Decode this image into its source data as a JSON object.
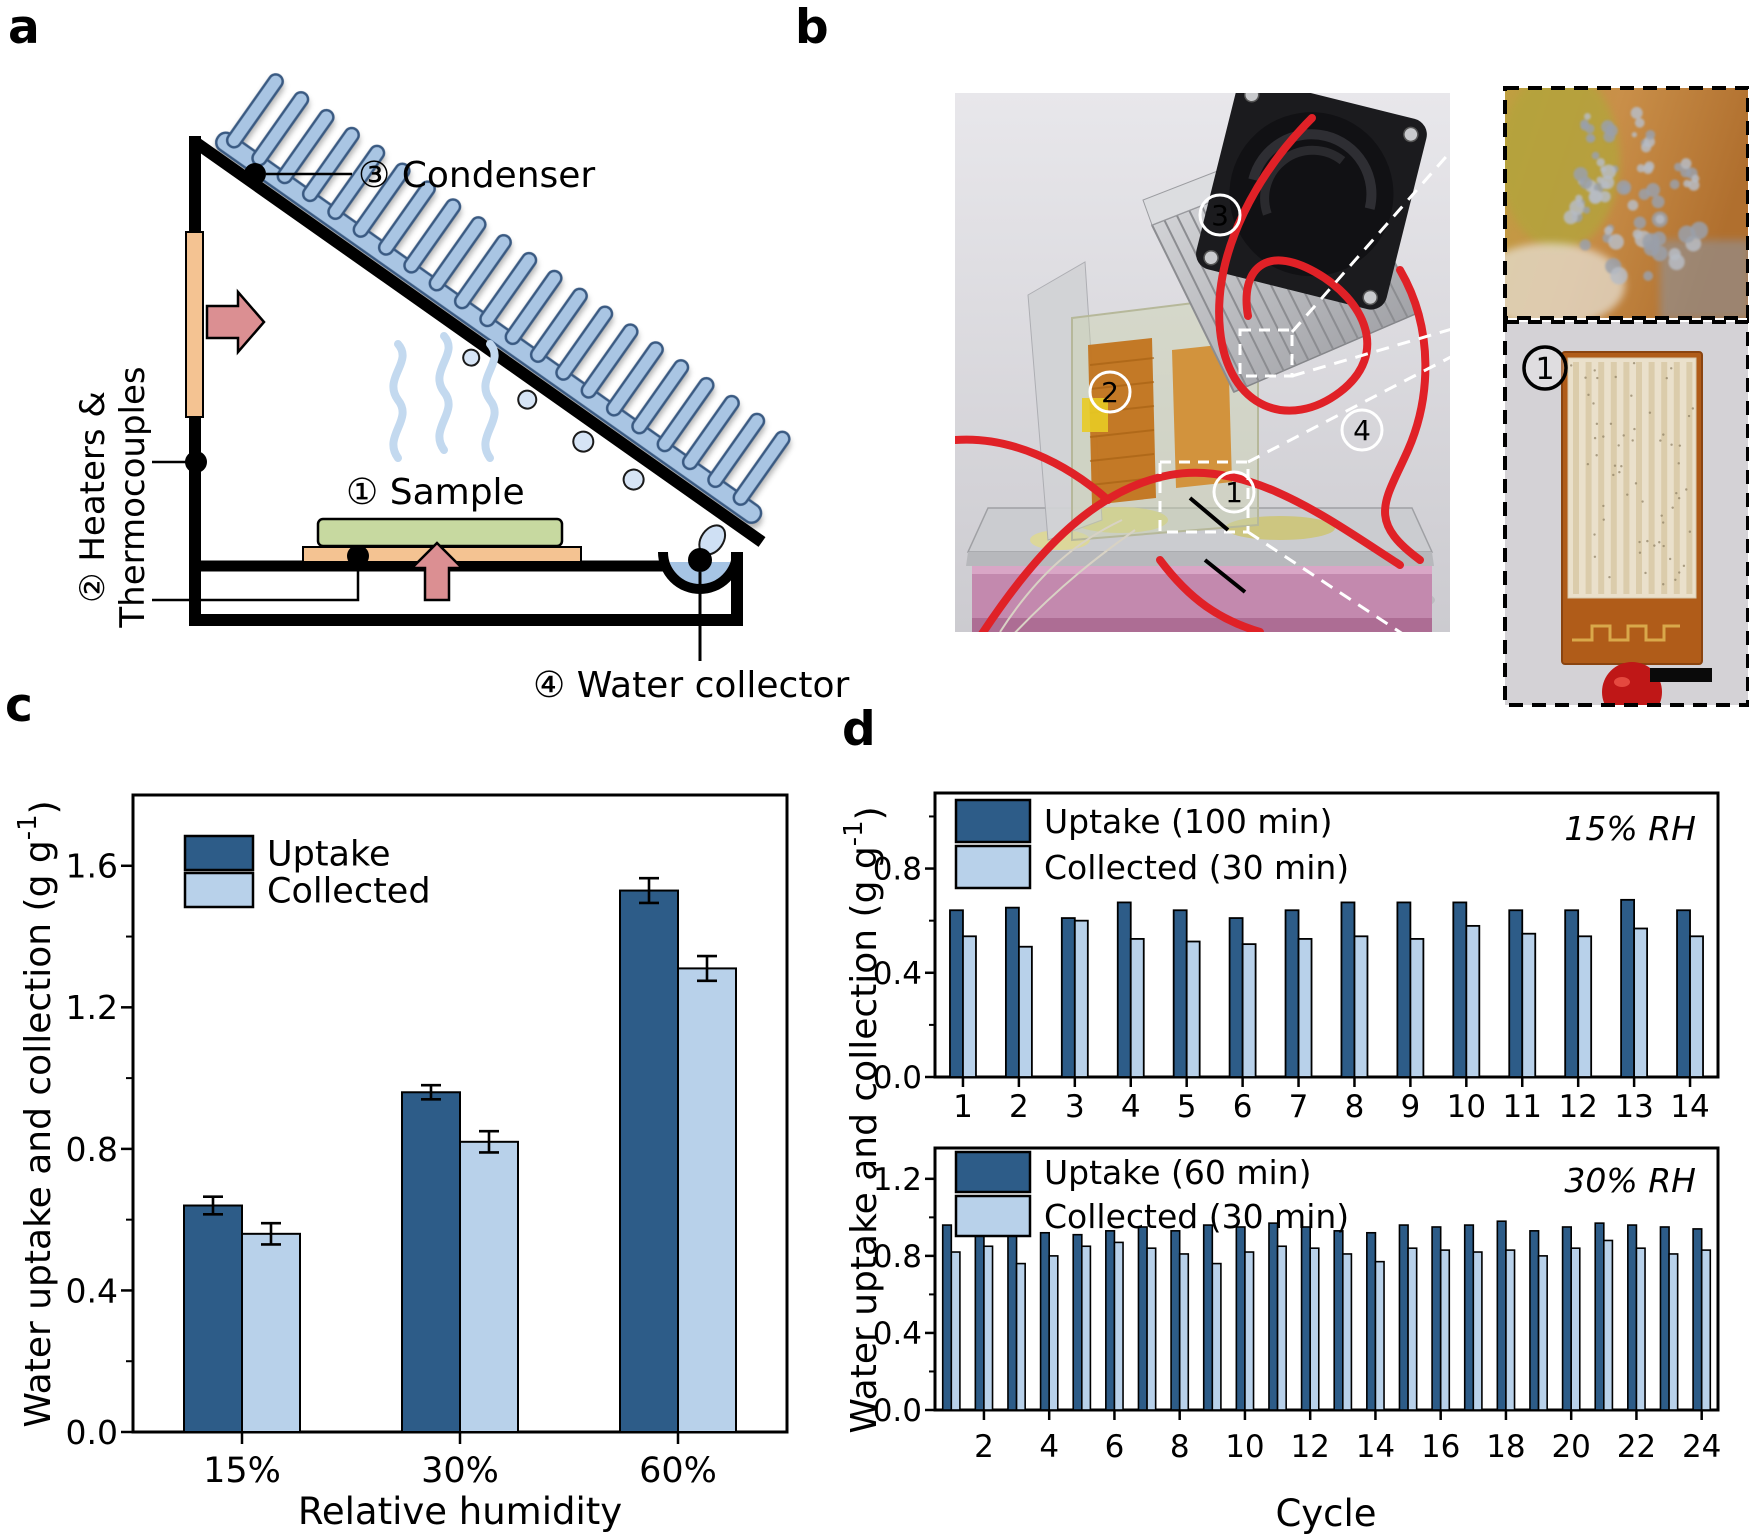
{
  "panels": {
    "a": "a",
    "b": "b",
    "c": "c",
    "d": "d"
  },
  "panel_a": {
    "condenser_label": "③ Condenser",
    "sample_label": "① Sample",
    "heaters_label_line1": "② Heaters &",
    "heaters_label_line2": "Thermocouples",
    "water_collector_label": "④ Water collector"
  },
  "panel_b": {
    "marker_condenser": "3",
    "marker_heater": "2",
    "marker_collector": "4",
    "marker_sample": "1",
    "inset_sample_marker": "1"
  },
  "colors": {
    "uptake_bar": "#2d5c88",
    "collected_bar": "#b8d1ea",
    "condenser_fill": "#a9c5e3",
    "heater_fill": "#f4c392",
    "sample_fill": "#c7d9a0",
    "arrow_fill": "#db8f92",
    "wire_red": "#e02127",
    "foam_pink": "#c389ae"
  },
  "chart_data": [
    {
      "id": "c",
      "type": "bar",
      "title": "",
      "categories": [
        "15%",
        "30%",
        "60%"
      ],
      "series": [
        {
          "name": "Uptake",
          "color": "#2d5c88",
          "values": [
            0.64,
            0.96,
            1.53
          ],
          "errors": [
            0.025,
            0.02,
            0.035
          ]
        },
        {
          "name": "Collected",
          "color": "#b8d1ea",
          "values": [
            0.56,
            0.82,
            1.31
          ],
          "errors": [
            0.03,
            0.03,
            0.035
          ]
        }
      ],
      "xlabel": "Relative humidity",
      "ylabel": "Water uptake and collection (g g⁻¹)",
      "ylim": [
        0,
        1.8
      ],
      "yticks": [
        0.0,
        0.4,
        0.8,
        1.2,
        1.6
      ],
      "grid": false,
      "legend_position": "top-left"
    },
    {
      "id": "d_top",
      "type": "bar",
      "annotation": "15% RH",
      "categories": [
        "1",
        "2",
        "3",
        "4",
        "5",
        "6",
        "7",
        "8",
        "9",
        "10",
        "11",
        "12",
        "13",
        "14"
      ],
      "series": [
        {
          "name": "Uptake (100 min)",
          "color": "#2d5c88",
          "values": [
            0.64,
            0.65,
            0.61,
            0.67,
            0.64,
            0.61,
            0.64,
            0.67,
            0.67,
            0.67,
            0.64,
            0.64,
            0.68,
            0.64
          ]
        },
        {
          "name": "Collected (30 min)",
          "color": "#b8d1ea",
          "values": [
            0.54,
            0.5,
            0.6,
            0.53,
            0.52,
            0.51,
            0.53,
            0.54,
            0.53,
            0.58,
            0.55,
            0.54,
            0.57,
            0.54
          ]
        }
      ],
      "xlabel": "",
      "ylabel": "",
      "ylim": [
        0,
        1.09
      ],
      "yticks": [
        0.0,
        0.4,
        0.8
      ],
      "grid": false,
      "legend_position": "top-left"
    },
    {
      "id": "d_bottom",
      "type": "bar",
      "annotation": "30% RH",
      "categories": [
        "1",
        "2",
        "3",
        "4",
        "5",
        "6",
        "7",
        "8",
        "9",
        "10",
        "11",
        "12",
        "13",
        "14",
        "15",
        "16",
        "17",
        "18",
        "19",
        "20",
        "21",
        "22",
        "23",
        "24"
      ],
      "xtick_labels": [
        "2",
        "4",
        "6",
        "8",
        "10",
        "12",
        "14",
        "16",
        "18",
        "20",
        "22",
        "24"
      ],
      "series": [
        {
          "name": "Uptake (60 min)",
          "color": "#2d5c88",
          "values": [
            0.96,
            0.93,
            0.94,
            0.92,
            0.91,
            0.93,
            0.95,
            0.93,
            0.96,
            0.95,
            0.97,
            0.95,
            0.93,
            0.92,
            0.96,
            0.95,
            0.96,
            0.98,
            0.93,
            0.95,
            0.97,
            0.96,
            0.95,
            0.94
          ]
        },
        {
          "name": "Collected (30 min)",
          "color": "#b8d1ea",
          "values": [
            0.82,
            0.85,
            0.76,
            0.8,
            0.85,
            0.87,
            0.84,
            0.81,
            0.76,
            0.82,
            0.85,
            0.84,
            0.81,
            0.77,
            0.84,
            0.83,
            0.82,
            0.83,
            0.8,
            0.84,
            0.88,
            0.84,
            0.81,
            0.83
          ]
        }
      ],
      "xlabel": "Cycle",
      "ylabel": "Water uptake and collection (g g⁻¹)",
      "ylim": [
        0,
        1.36
      ],
      "yticks": [
        0.0,
        0.4,
        0.8,
        1.2
      ],
      "grid": false,
      "legend_position": "top-left"
    }
  ]
}
